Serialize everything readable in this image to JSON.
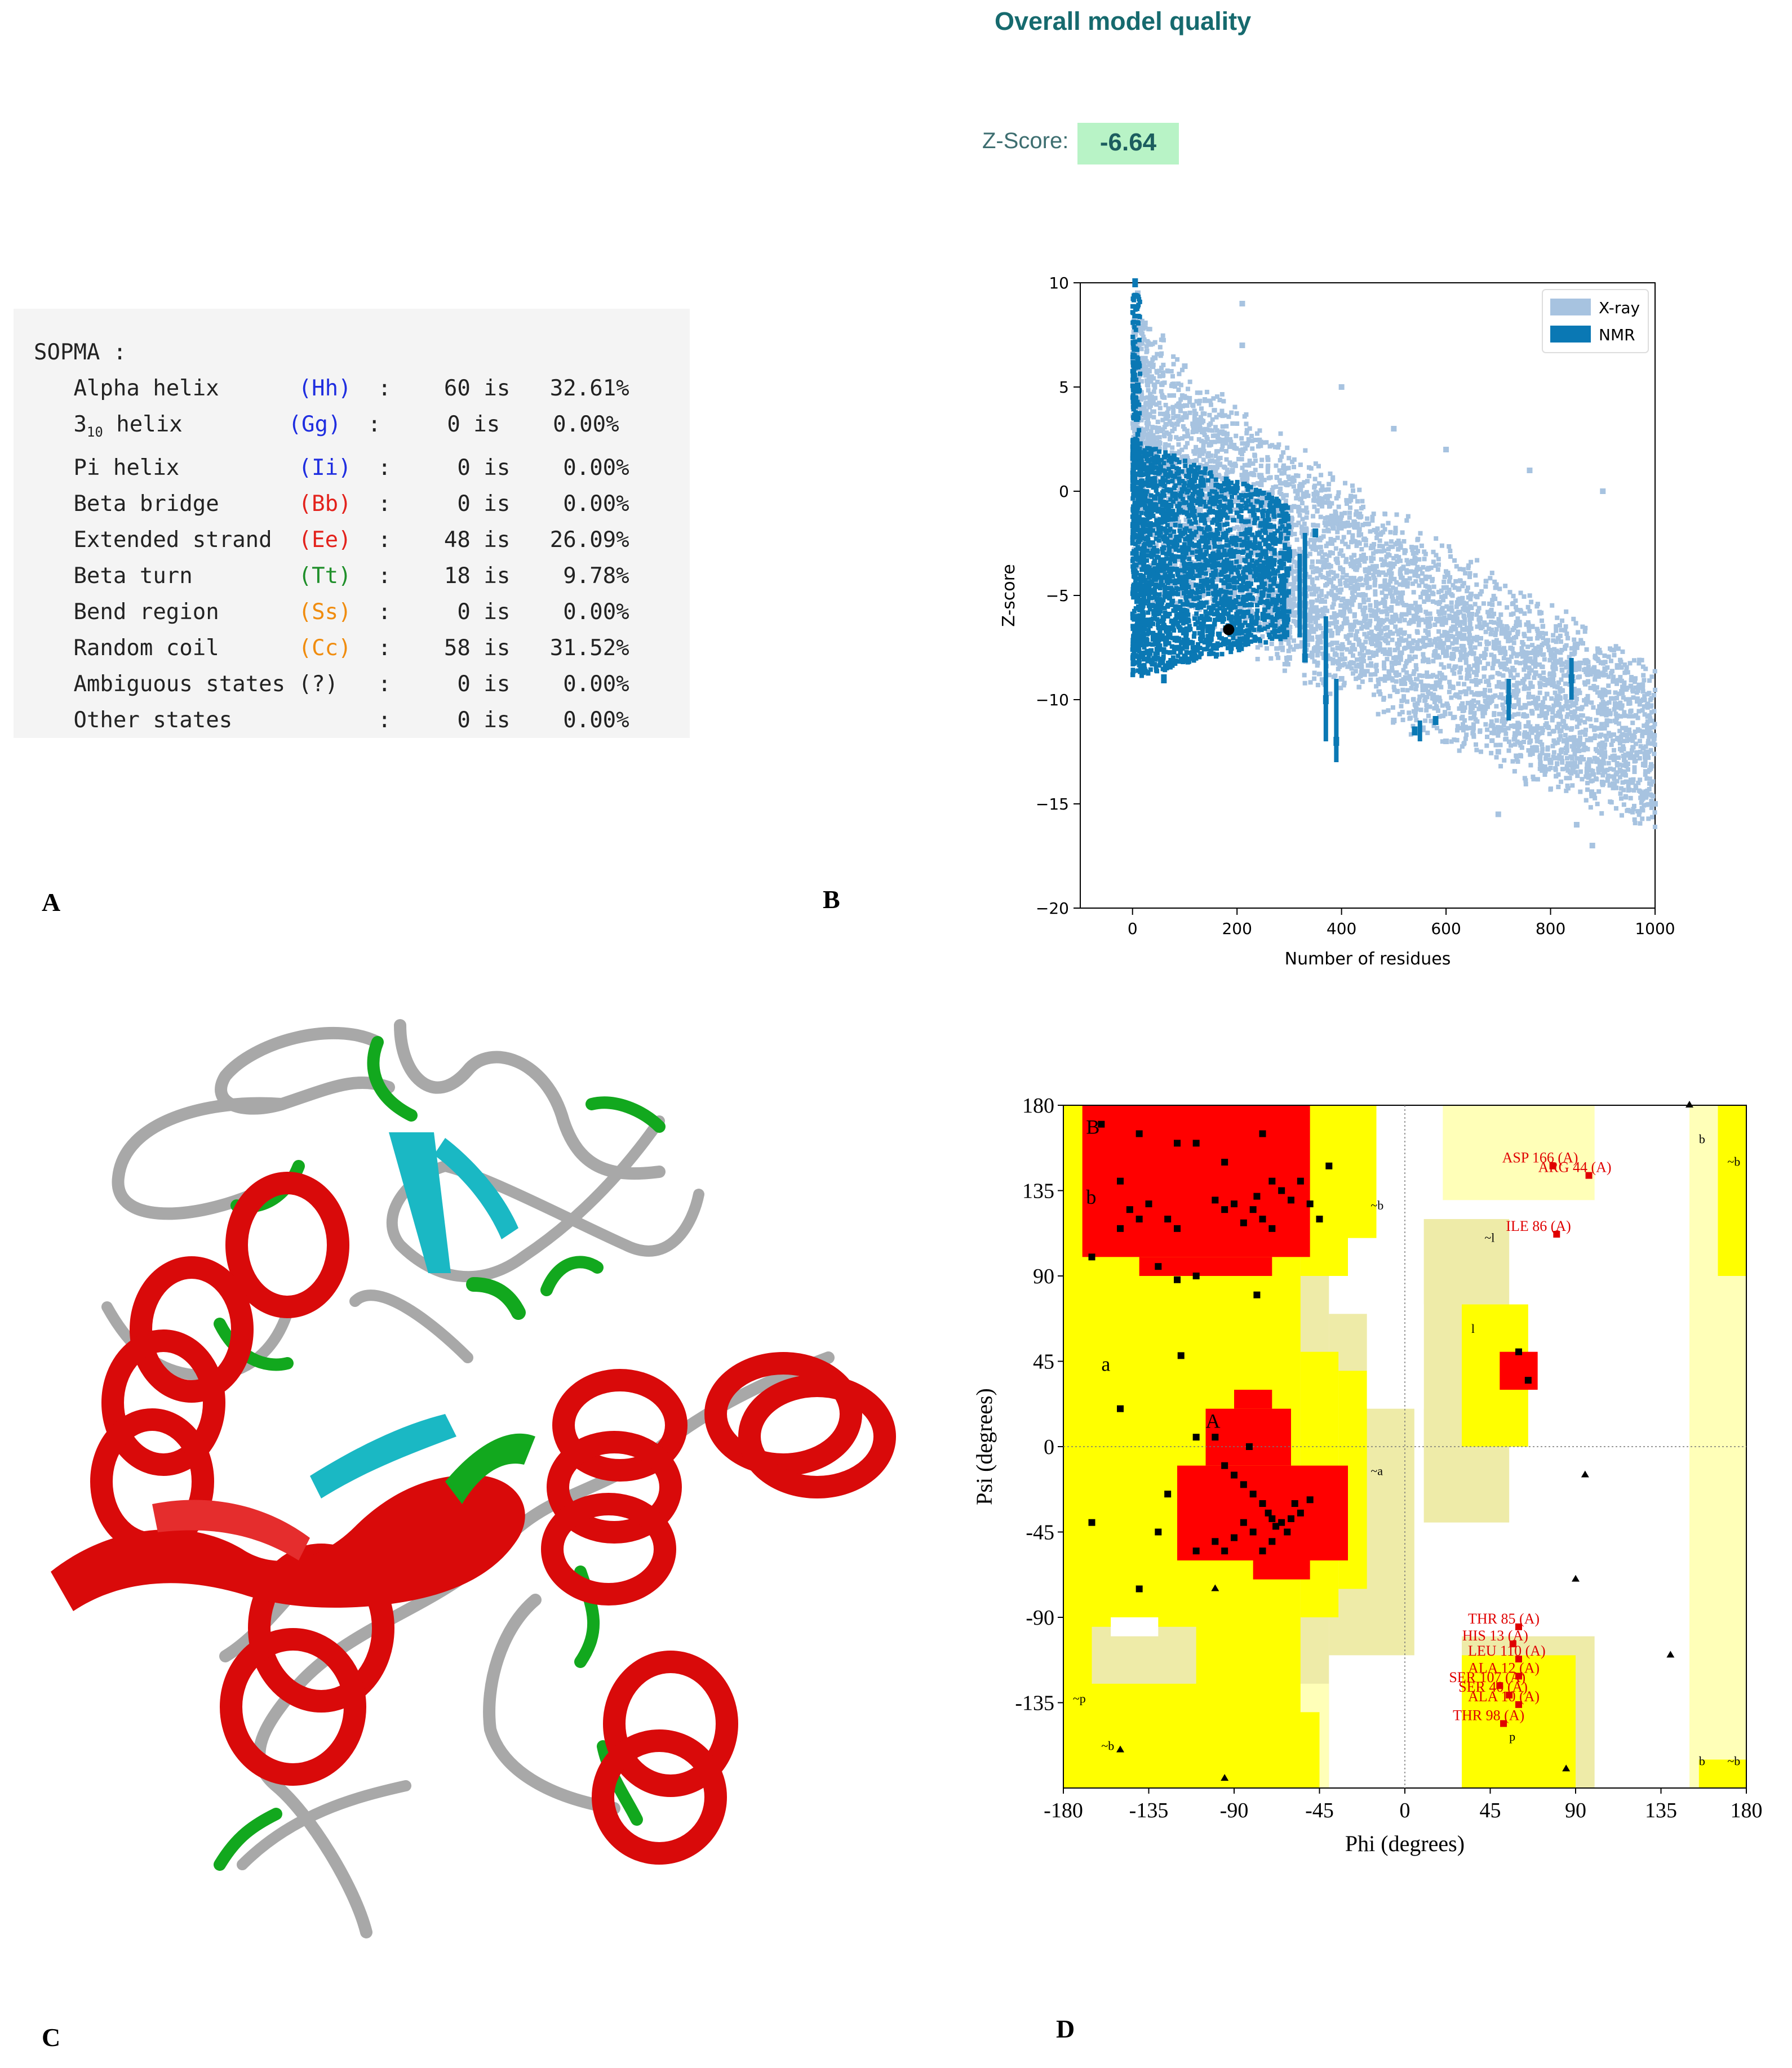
{
  "panels": {
    "a": "A",
    "b": "B",
    "c": "C",
    "d": "D"
  },
  "sopma": {
    "title": "SOPMA :",
    "rows": [
      {
        "name": "Alpha helix",
        "code": "(Hh)",
        "count": "60",
        "pct": "32.61%",
        "color": "#1f2ee0"
      },
      {
        "name": "3",
        "sub": "10",
        "name_tail": " helix",
        "code": "(Gg)",
        "count": "0",
        "pct": "0.00%",
        "color": "#1f2ee0"
      },
      {
        "name": "Pi helix",
        "code": "(Ii)",
        "count": "0",
        "pct": "0.00%",
        "color": "#1f2ee0"
      },
      {
        "name": "Beta bridge",
        "code": "(Bb)",
        "count": "0",
        "pct": "0.00%",
        "color": "#e3221c"
      },
      {
        "name": "Extended strand",
        "code": "(Ee)",
        "count": "48",
        "pct": "26.09%",
        "color": "#e3221c"
      },
      {
        "name": "Beta turn",
        "code": "(Tt)",
        "count": "18",
        "pct": "9.78%",
        "color": "#1f8f2a"
      },
      {
        "name": "Bend region",
        "code": "(Ss)",
        "count": "0",
        "pct": "0.00%",
        "color": "#f08c0e"
      },
      {
        "name": "Random coil",
        "code": "(Cc)",
        "count": "58",
        "pct": "31.52%",
        "color": "#f08c0e"
      },
      {
        "name": "Ambiguous states",
        "code": "(?)",
        "count": "0",
        "pct": "0.00%",
        "color": "#222222"
      },
      {
        "name": "Other states",
        "code": "",
        "count": "0",
        "pct": "0.00%",
        "color": "#222222"
      }
    ],
    "is_word": "is"
  },
  "quality": {
    "title": "Overall model quality",
    "z_label": "Z-Score:",
    "z_value": "-6.64"
  },
  "chart_data": [
    {
      "type": "scatter",
      "xlabel": "Number of residues",
      "ylabel": "Z-score",
      "xlim": [
        -100,
        1000
      ],
      "ylim": [
        -20,
        10
      ],
      "xticks": [
        0,
        200,
        400,
        600,
        800,
        1000
      ],
      "yticks": [
        10,
        5,
        0,
        -5,
        -10,
        -15,
        -20
      ],
      "legend": {
        "placement": "top-right",
        "entries": [
          {
            "name": "X-ray",
            "color": "#a7c3e0"
          },
          {
            "name": "NMR",
            "color": "#0a78b4"
          }
        ]
      },
      "highlight_point": {
        "x": 184,
        "y": -6.64,
        "color": "#000000"
      },
      "series": [
        {
          "name": "X-ray",
          "color": "#a7c3e0",
          "description_points": [
            [
              10,
              9.5
            ],
            [
              100,
              6
            ],
            [
              210,
              9
            ],
            [
              210,
              7
            ],
            [
              400,
              5
            ],
            [
              500,
              3
            ],
            [
              600,
              2
            ],
            [
              760,
              1
            ],
            [
              900,
              0
            ],
            [
              20,
              -2
            ],
            [
              100,
              -4
            ],
            [
              200,
              -6
            ],
            [
              300,
              -8
            ],
            [
              400,
              -9
            ],
            [
              500,
              -11
            ],
            [
              600,
              -12
            ],
            [
              700,
              -12.5
            ],
            [
              800,
              -13
            ],
            [
              900,
              -14
            ],
            [
              1000,
              -15
            ],
            [
              700,
              -15.5
            ],
            [
              850,
              -16
            ],
            [
              880,
              -17
            ]
          ]
        },
        {
          "name": "NMR",
          "color": "#0a78b4",
          "description_points": [
            [
              5,
              10
            ],
            [
              10,
              5
            ],
            [
              12,
              0
            ],
            [
              20,
              -3
            ],
            [
              40,
              -7
            ],
            [
              60,
              -9
            ],
            [
              100,
              -8
            ],
            [
              150,
              -7
            ],
            [
              200,
              -6
            ],
            [
              250,
              -4
            ],
            [
              300,
              -3
            ],
            [
              350,
              -2
            ],
            [
              370,
              -10
            ],
            [
              390,
              -12
            ],
            [
              250,
              -6
            ],
            [
              330,
              -8
            ],
            [
              580,
              -11
            ],
            [
              540,
              -11.5
            ],
            [
              720,
              -10
            ],
            [
              840,
              -9
            ]
          ]
        }
      ]
    },
    {
      "type": "scatter",
      "xlabel": "Phi (degrees)",
      "ylabel": "Psi (degrees)",
      "xlim": [
        -180,
        180
      ],
      "ylim": [
        -180,
        180
      ],
      "xticks": [
        -180,
        -135,
        -90,
        -45,
        0,
        45,
        90,
        135,
        180
      ],
      "yticks": [
        180,
        135,
        90,
        45,
        0,
        -45,
        -90,
        -135
      ],
      "region_labels": [
        "B",
        "b",
        "A",
        "a",
        "~b",
        "~a",
        "~l",
        "l",
        "p",
        "~p",
        "~b",
        "b",
        "~b",
        "b",
        "~b"
      ],
      "residue_labels": [
        {
          "label": "ASP 166 (A)",
          "phi": 78,
          "psi": 148
        },
        {
          "label": "ARG 44 (A)",
          "phi": 97,
          "psi": 143
        },
        {
          "label": "ILE 86 (A)",
          "phi": 80,
          "psi": 112
        },
        {
          "label": "THR 85 (A)",
          "phi": 60,
          "psi": -95
        },
        {
          "label": "HIS 13 (A)",
          "phi": 57,
          "psi": -104
        },
        {
          "label": "LEU 110 (A)",
          "phi": 60,
          "psi": -112
        },
        {
          "label": "ALA 12 (A)",
          "phi": 60,
          "psi": -121
        },
        {
          "label": "SER 107 (A)",
          "phi": 50,
          "psi": -126
        },
        {
          "label": "SER 40 (A)",
          "phi": 55,
          "psi": -131
        },
        {
          "label": "ALA 10 (A)",
          "phi": 60,
          "psi": -136
        },
        {
          "label": "THR 98 (A)",
          "phi": 52,
          "psi": -146
        }
      ],
      "points": [
        [
          -160,
          170
        ],
        [
          -140,
          165
        ],
        [
          -120,
          160
        ],
        [
          -110,
          160
        ],
        [
          -95,
          150
        ],
        [
          -75,
          165
        ],
        [
          -70,
          140
        ],
        [
          -65,
          135
        ],
        [
          -60,
          130
        ],
        [
          -55,
          140
        ],
        [
          -50,
          128
        ],
        [
          -45,
          120
        ],
        [
          -40,
          148
        ],
        [
          -150,
          140
        ],
        [
          -145,
          125
        ],
        [
          -140,
          120
        ],
        [
          -135,
          128
        ],
        [
          -125,
          120
        ],
        [
          -120,
          115
        ],
        [
          -100,
          130
        ],
        [
          -95,
          125
        ],
        [
          -90,
          128
        ],
        [
          -85,
          118
        ],
        [
          -80,
          125
        ],
        [
          -78,
          132
        ],
        [
          -75,
          120
        ],
        [
          -70,
          115
        ],
        [
          -165,
          100
        ],
        [
          -150,
          115
        ],
        [
          -130,
          95
        ],
        [
          -120,
          88
        ],
        [
          -110,
          90
        ],
        [
          -78,
          80
        ],
        [
          -118,
          48
        ],
        [
          -150,
          20
        ],
        [
          -100,
          5
        ],
        [
          -95,
          -10
        ],
        [
          -90,
          -15
        ],
        [
          -85,
          -20
        ],
        [
          -80,
          -25
        ],
        [
          -75,
          -30
        ],
        [
          -72,
          -35
        ],
        [
          -70,
          -38
        ],
        [
          -68,
          -42
        ],
        [
          -65,
          -40
        ],
        [
          -62,
          -45
        ],
        [
          -60,
          -38
        ],
        [
          -58,
          -30
        ],
        [
          -55,
          -35
        ],
        [
          -50,
          -28
        ],
        [
          -70,
          -50
        ],
        [
          -75,
          -55
        ],
        [
          -80,
          -45
        ],
        [
          -85,
          -40
        ],
        [
          -90,
          -48
        ],
        [
          -100,
          -50
        ],
        [
          -110,
          -55
        ],
        [
          -125,
          -25
        ],
        [
          -130,
          -45
        ],
        [
          -165,
          -40
        ],
        [
          -140,
          -75
        ],
        [
          -95,
          -55
        ],
        [
          60,
          50
        ],
        [
          65,
          35
        ],
        [
          -110,
          5
        ],
        [
          -82,
          0
        ]
      ],
      "triangles": [
        [
          -150,
          -160
        ],
        [
          -100,
          -75
        ],
        [
          -95,
          -175
        ],
        [
          95,
          -15
        ],
        [
          90,
          -70
        ],
        [
          140,
          -110
        ],
        [
          85,
          -170
        ],
        [
          150,
          180
        ]
      ]
    }
  ]
}
